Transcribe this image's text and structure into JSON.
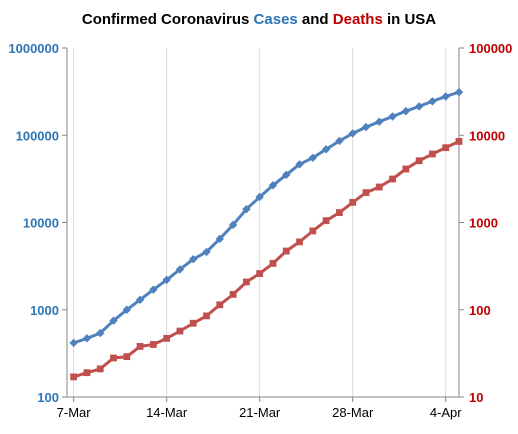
{
  "chart_data": {
    "type": "line",
    "title": {
      "parts": [
        {
          "text": "Confirmed Coronavirus ",
          "color": "#000000"
        },
        {
          "text": "Cases",
          "color": "#2E75B6"
        },
        {
          "text": " and ",
          "color": "#000000"
        },
        {
          "text": "Deaths",
          "color": "#C00000"
        },
        {
          "text": " in USA",
          "color": "#000000"
        }
      ]
    },
    "x_tick_labels": [
      "7-Mar",
      "14-Mar",
      "21-Mar",
      "28-Mar",
      "4-Apr"
    ],
    "x_tick_day_index": [
      0,
      7,
      14,
      21,
      28
    ],
    "y_left": {
      "scale": "log",
      "range": [
        100,
        1000000
      ],
      "tick_labels": [
        "100",
        "1000",
        "10000",
        "100000",
        "1000000"
      ],
      "tick_values": [
        100,
        1000,
        10000,
        100000,
        1000000
      ],
      "color": "#2E75B6"
    },
    "y_right": {
      "scale": "log",
      "range": [
        10,
        100000
      ],
      "tick_labels": [
        "10",
        "100",
        "1000",
        "10000",
        "100000"
      ],
      "tick_values": [
        10,
        100,
        1000,
        10000,
        100000
      ],
      "color": "#C00000"
    },
    "grid": "vertical",
    "series": [
      {
        "name": "Cases",
        "axis": "left",
        "color": "#4F81BD",
        "marker": "diamond",
        "x": [
          "2020-03-07",
          "2020-03-08",
          "2020-03-09",
          "2020-03-10",
          "2020-03-11",
          "2020-03-12",
          "2020-03-13",
          "2020-03-14",
          "2020-03-15",
          "2020-03-16",
          "2020-03-17",
          "2020-03-18",
          "2020-03-19",
          "2020-03-20",
          "2020-03-21",
          "2020-03-22",
          "2020-03-23",
          "2020-03-24",
          "2020-03-25",
          "2020-03-26",
          "2020-03-27",
          "2020-03-28",
          "2020-03-29",
          "2020-03-30",
          "2020-03-31",
          "2020-04-01",
          "2020-04-02",
          "2020-04-03",
          "2020-04-04",
          "2020-04-05"
        ],
        "values": [
          417,
          470,
          540,
          750,
          1000,
          1300,
          1700,
          2200,
          2900,
          3800,
          4600,
          6500,
          9400,
          14200,
          19600,
          26700,
          35200,
          46400,
          55200,
          69000,
          86000,
          105000,
          124000,
          143000,
          164000,
          189000,
          214000,
          245000,
          278000,
          312000
        ]
      },
      {
        "name": "Deaths",
        "axis": "right",
        "color": "#C0504D",
        "marker": "square",
        "x": [
          "2020-03-07",
          "2020-03-08",
          "2020-03-09",
          "2020-03-10",
          "2020-03-11",
          "2020-03-12",
          "2020-03-13",
          "2020-03-14",
          "2020-03-15",
          "2020-03-16",
          "2020-03-17",
          "2020-03-18",
          "2020-03-19",
          "2020-03-20",
          "2020-03-21",
          "2020-03-22",
          "2020-03-23",
          "2020-03-24",
          "2020-03-25",
          "2020-03-26",
          "2020-03-27",
          "2020-03-28",
          "2020-03-29",
          "2020-03-30",
          "2020-03-31",
          "2020-04-01",
          "2020-04-02",
          "2020-04-03",
          "2020-04-04",
          "2020-04-05"
        ],
        "values": [
          17,
          19,
          21,
          28,
          29,
          38,
          40,
          47,
          57,
          70,
          85,
          114,
          150,
          208,
          260,
          340,
          471,
          600,
          800,
          1050,
          1300,
          1700,
          2200,
          2550,
          3150,
          4100,
          5100,
          6100,
          7200,
          8500
        ]
      }
    ]
  }
}
